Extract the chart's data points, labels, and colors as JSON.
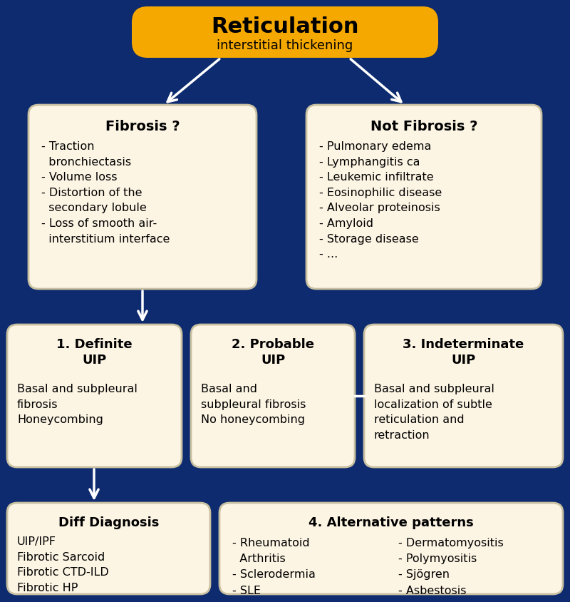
{
  "bg_color": "#0d2b6e",
  "box_fill": "#fdf5e4",
  "box_edge": "#c8c0a0",
  "arrow_color": "#ffffff",
  "title_box_fill": "#f5a800",
  "title_text": "Reticulation",
  "title_sub": "interstitial thickening",
  "fibrosis_title": "Fibrosis ?",
  "fibrosis_body": "- Traction\n  bronchiectasis\n- Volume loss\n- Distortion of the\n  secondary lobule\n- Loss of smooth air-\n  interstitium interface",
  "not_fibrosis_title": "Not Fibrosis ?",
  "not_fibrosis_body": "- Pulmonary edema\n- Lymphangitis ca\n- Leukemic infiltrate\n- Eosinophilic disease\n- Alveolar proteinosis\n- Amyloid\n- Storage disease\n- ...",
  "uip1_title": "1. Definite\nUIP",
  "uip1_body": "Basal and subpleural\nfibrosis\nHoneycombing",
  "uip2_title": "2. Probable\nUIP",
  "uip2_body": "Basal and\nsubpleural fibrosis\nNo honeycombing",
  "uip3_title": "3. Indeterminate\nUIP",
  "uip3_body": "Basal and subpleural\nlocalization of subtle\nreticulation and\nretraction",
  "diff_title": "Diff Diagnosis",
  "diff_body": "UIP/IPF\nFibrotic Sarcoid\nFibrotic CTD-ILD\nFibrotic HP",
  "alt_title": "4. Alternative patterns",
  "alt_body_left": "- Rheumatoid\n  Arthritis\n- Sclerodermia\n- SLE",
  "alt_body_right": "- Dermatomyositis\n- Polymyositis\n- Sjögren\n- Asbestosis"
}
